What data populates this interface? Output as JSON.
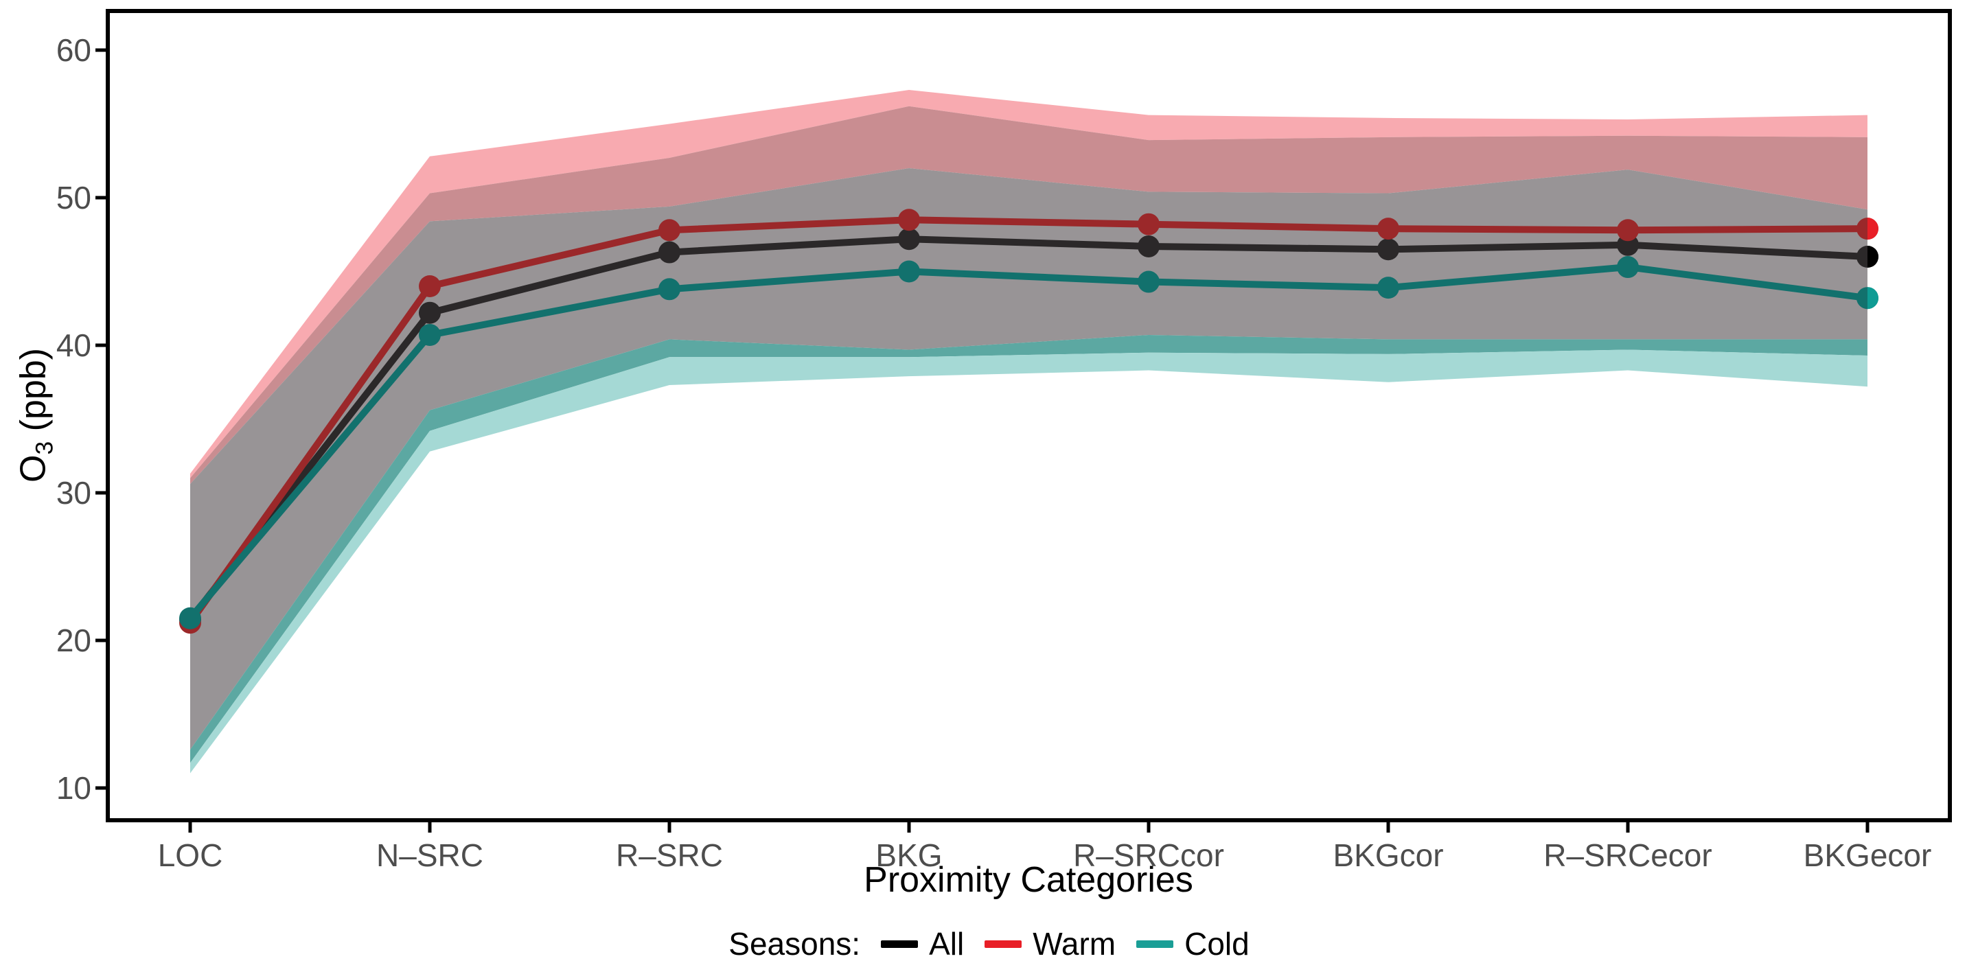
{
  "chart_data": {
    "type": "line",
    "title": "",
    "xlabel": "Proximity Categories",
    "ylabel": "O3 (ppb)",
    "ylabel_parts": {
      "main": "O",
      "sub": "3",
      "rest": " (ppb)"
    },
    "categories": [
      "LOC",
      "N–SRC",
      "R–SRC",
      "BKG",
      "R–SRCcor",
      "BKGcor",
      "R–SRCecor",
      "BKGecor"
    ],
    "yticks": [
      10,
      20,
      30,
      40,
      50,
      60
    ],
    "ylim": [
      7.8,
      62.6
    ],
    "grid": "off",
    "legend_position": "bottom",
    "legend_title": "Seasons:",
    "series": [
      {
        "name": "All",
        "color": "#000000",
        "color_over_ribbon": "#2b2829",
        "means": [
          21.4,
          42.2,
          46.3,
          47.2,
          46.7,
          46.5,
          46.8,
          46.0
        ],
        "band_lower": [
          12.6,
          35.6,
          40.4,
          39.7,
          40.7,
          40.4,
          40.4,
          40.4
        ],
        "band_upper": [
          31.0,
          50.3,
          52.7,
          56.2,
          53.9,
          54.1,
          54.2,
          54.1
        ]
      },
      {
        "name": "Warm",
        "color": "#e81f27",
        "color_over_ribbon": "#9b282a",
        "means": [
          21.2,
          44.0,
          47.8,
          48.5,
          48.2,
          47.9,
          47.8,
          47.9
        ],
        "band_lower": [
          11.7,
          34.2,
          39.2,
          39.2,
          39.5,
          39.4,
          39.7,
          39.3
        ],
        "band_upper": [
          31.3,
          52.8,
          55.0,
          57.3,
          55.6,
          55.4,
          55.3,
          55.6
        ]
      },
      {
        "name": "Cold",
        "color": "#0f9c94",
        "color_over_ribbon": "#12716d",
        "means": [
          21.5,
          40.7,
          43.8,
          45.0,
          44.3,
          43.9,
          45.3,
          43.2
        ],
        "band_lower": [
          11.0,
          32.8,
          37.3,
          37.9,
          38.3,
          37.5,
          38.3,
          37.2
        ],
        "band_upper": [
          30.6,
          48.4,
          49.4,
          52.0,
          50.4,
          50.3,
          51.9,
          49.2
        ]
      }
    ],
    "band_fill_colors": {
      "warm_only": "#f8aab0",
      "warm_over_all": "#c98d91",
      "all_overlap": "#989496",
      "cold_over_warm": "#5ca8a2",
      "cold_only": "#a5d9d5"
    },
    "axis_text_color": "#4d4d4d",
    "axis_line_color": "#000000"
  },
  "legend": {
    "title": "Seasons:",
    "items": [
      {
        "label": "All",
        "color": "#000000"
      },
      {
        "label": "Warm",
        "color": "#e81f27"
      },
      {
        "label": "Cold",
        "color": "#1a9e96"
      }
    ]
  }
}
